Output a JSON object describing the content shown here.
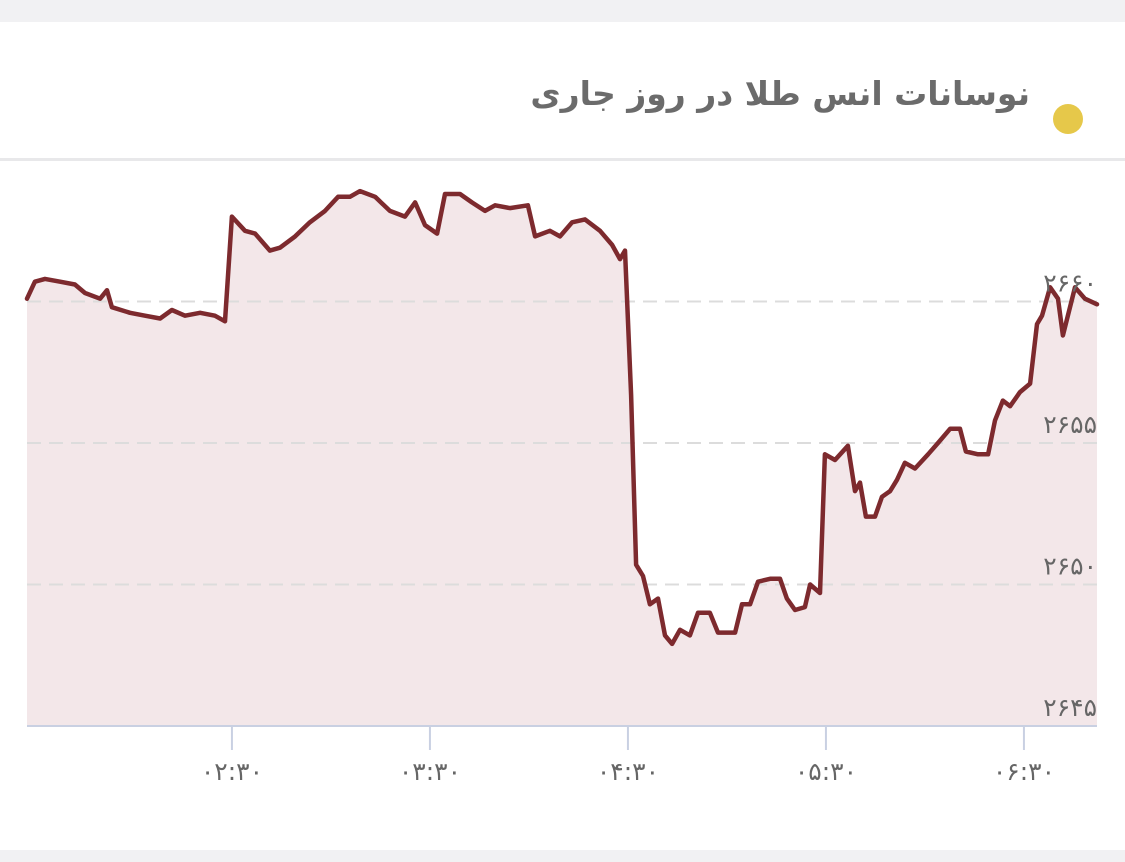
{
  "chart_data": {
    "type": "area",
    "title": "نوسانات انس طلا در روز جاری",
    "x": [
      1.465,
      1.505,
      1.556,
      1.632,
      1.707,
      1.758,
      1.834,
      1.869,
      1.894,
      1.985,
      2.061,
      2.137,
      2.197,
      2.263,
      2.339,
      2.414,
      2.465,
      2.5,
      2.566,
      2.617,
      2.692,
      2.743,
      2.819,
      2.894,
      2.97,
      3.036,
      3.096,
      3.147,
      3.223,
      3.298,
      3.374,
      3.425,
      3.475,
      3.536,
      3.576,
      3.652,
      3.712,
      3.778,
      3.829,
      3.904,
      3.995,
      4.031,
      4.106,
      4.157,
      4.218,
      4.283,
      4.359,
      4.42,
      4.46,
      4.485,
      4.516,
      4.541,
      4.576,
      4.611,
      4.652,
      4.687,
      4.723,
      4.763,
      4.813,
      4.854,
      4.914,
      4.955,
      5.041,
      5.076,
      5.117,
      5.157,
      5.218,
      5.268,
      5.303,
      5.344,
      5.394,
      5.42,
      5.47,
      5.495,
      5.546,
      5.611,
      5.647,
      5.672,
      5.702,
      5.748,
      5.783,
      5.824,
      5.859,
      5.899,
      5.95,
      6.016,
      6.066,
      6.127,
      6.177,
      6.207,
      6.268,
      6.319,
      6.354,
      6.394,
      6.43,
      6.48,
      6.531,
      6.566,
      6.591,
      6.632,
      6.672,
      6.697,
      6.758,
      6.808,
      6.869
    ],
    "series": [
      {
        "color": "#7d2a2e",
        "fill": "#f3e7e9",
        "values": [
          2660.1,
          2660.7,
          2660.8,
          2660.7,
          2660.6,
          2660.3,
          2660.1,
          2660.4,
          2659.8,
          2659.6,
          2659.5,
          2659.4,
          2659.7,
          2659.5,
          2659.6,
          2659.5,
          2659.3,
          2663.0,
          2662.5,
          2662.4,
          2661.8,
          2661.9,
          2662.3,
          2662.8,
          2663.2,
          2663.7,
          2663.7,
          2663.9,
          2663.7,
          2663.2,
          2663.0,
          2663.5,
          2662.7,
          2662.4,
          2663.8,
          2663.8,
          2663.5,
          2663.2,
          2663.4,
          2663.3,
          2663.4,
          2662.3,
          2662.5,
          2662.3,
          2662.8,
          2662.9,
          2662.5,
          2662.0,
          2661.5,
          2661.8,
          2656.7,
          2650.7,
          2650.3,
          2649.3,
          2649.5,
          2648.2,
          2647.9,
          2648.4,
          2648.2,
          2649.0,
          2649.0,
          2648.3,
          2648.3,
          2649.3,
          2649.3,
          2650.1,
          2650.2,
          2650.2,
          2649.5,
          2649.1,
          2649.2,
          2650.0,
          2649.7,
          2654.6,
          2654.4,
          2654.9,
          2653.3,
          2653.6,
          2652.4,
          2652.4,
          2653.1,
          2653.3,
          2653.7,
          2654.3,
          2654.1,
          2654.6,
          2655.0,
          2655.5,
          2655.5,
          2654.7,
          2654.6,
          2654.6,
          2655.8,
          2656.5,
          2656.3,
          2656.8,
          2657.1,
          2659.2,
          2659.5,
          2660.5,
          2660.1,
          2658.8,
          2660.5,
          2660.1,
          2659.9
        ]
      }
    ],
    "xlim": [
      1.465,
      6.869
    ],
    "xticks": [
      {
        "value": 2.5,
        "label": "۰۲:۳۰"
      },
      {
        "value": 3.5,
        "label": "۰۳:۳۰"
      },
      {
        "value": 4.5,
        "label": "۰۴:۳۰"
      },
      {
        "value": 5.5,
        "label": "۰۵:۳۰"
      },
      {
        "value": 6.5,
        "label": "۰۶:۳۰"
      }
    ],
    "ylim": [
      2645,
      2665
    ],
    "yticks": [
      {
        "value": 2645,
        "label": "۲۶۴۵"
      },
      {
        "value": 2650,
        "label": "۲۶۵۰"
      },
      {
        "value": 2655,
        "label": "۲۶۵۵"
      },
      {
        "value": 2660,
        "label": "۲۶۶۰"
      }
    ],
    "grid": true
  }
}
